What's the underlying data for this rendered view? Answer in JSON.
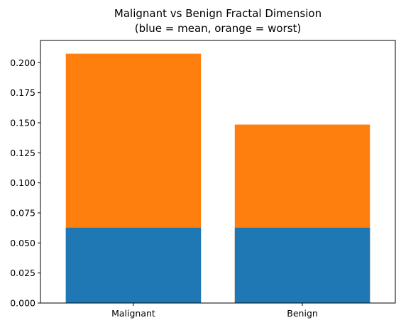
{
  "chart_data": {
    "type": "bar",
    "title_lines": [
      "Malignant vs Benign Fractal Dimension",
      "(blue = mean, orange = worst)"
    ],
    "xlabel": "",
    "ylabel": "",
    "categories": [
      "Malignant",
      "Benign"
    ],
    "series": [
      {
        "color": "#ff7f0e",
        "values": [
          0.2075,
          0.1485
        ]
      },
      {
        "color": "#1f77b4",
        "values": [
          0.0627,
          0.0627
        ]
      }
    ],
    "ylim": [
      0,
      0.2185
    ],
    "yticks": [
      0.0,
      0.025,
      0.05,
      0.075,
      0.1,
      0.125,
      0.15,
      0.175,
      0.2
    ],
    "ytick_labels": [
      "0.000",
      "0.025",
      "0.050",
      "0.075",
      "0.100",
      "0.125",
      "0.150",
      "0.175",
      "0.200"
    ],
    "grid": false,
    "legend": "none",
    "overlay": true
  }
}
